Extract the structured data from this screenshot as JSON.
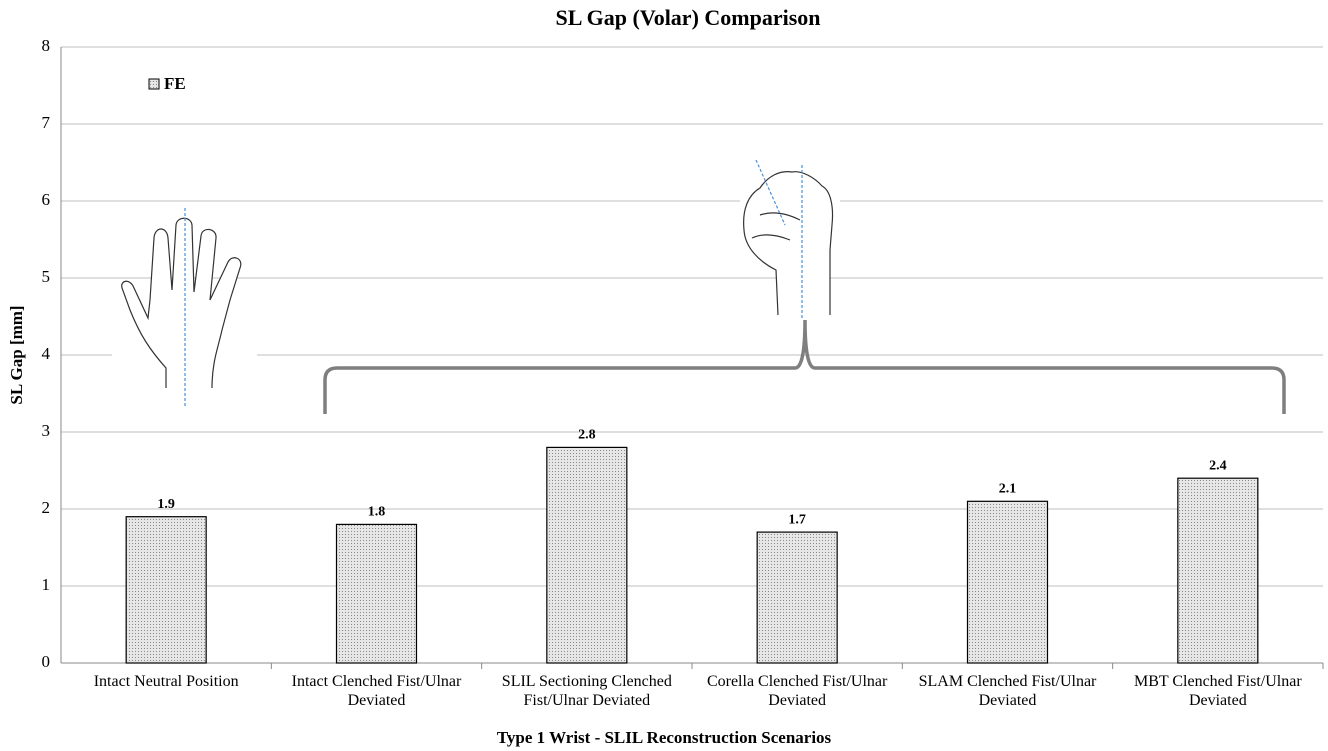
{
  "chart_data": {
    "type": "bar",
    "title": "SL Gap (Volar) Comparison",
    "x_label": "Type 1 Wrist - SLIL Reconstruction Scenarios",
    "y_label": "SL Gap [mm]",
    "categories": [
      "Intact Neutral Position",
      "Intact Clenched Fist/Ulnar Deviated",
      "SLIL Sectioning Clenched Fist/Ulnar Deviated",
      "Corella Clenched Fist/Ulnar Deviated",
      "SLAM Clenched Fist/Ulnar Deviated",
      "MBT Clenched Fist/Ulnar Deviated"
    ],
    "series": [
      {
        "name": "FE",
        "color": "#d4d4d4",
        "values": [
          1.9,
          1.8,
          2.8,
          1.7,
          2.1,
          2.4
        ]
      }
    ],
    "ylim": [
      0,
      8
    ],
    "yticks": [
      0,
      1,
      2,
      3,
      4,
      5,
      6,
      7,
      8
    ],
    "grid": true,
    "legend": "upper left"
  }
}
